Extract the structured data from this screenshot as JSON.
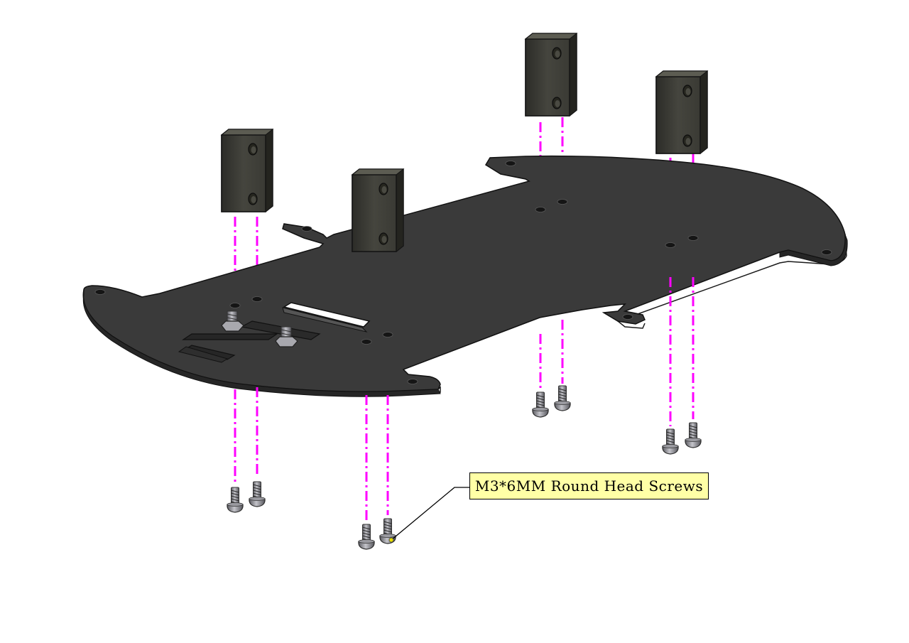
{
  "diagram": {
    "callout": {
      "label": "M3*6MM Round Head Screws"
    },
    "colors": {
      "background": "#ffffff",
      "plate": "#3a3a3a",
      "plate_edge": "#1e1e1e",
      "standoff": "#3d3d35",
      "standoff_top": "#55554c",
      "guide_line": "#ff00ff",
      "screw": "#8a8a8f",
      "callout_fill": "#ffffa6",
      "leader": "#000000",
      "leader_tip": "#e8e000"
    },
    "icons": [
      "chassis-plate",
      "standoff-block",
      "round-head-screw",
      "hex-nut"
    ]
  }
}
